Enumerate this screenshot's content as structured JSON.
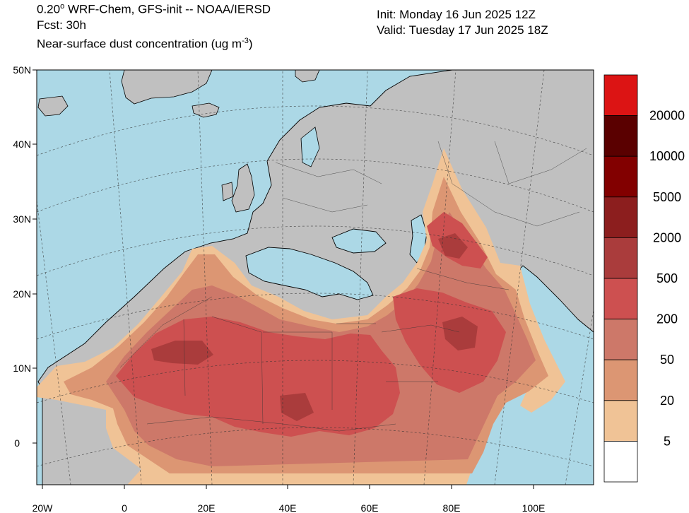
{
  "header": {
    "model_line_prefix": "0.20",
    "model_line_suffix": " WRF-Chem, GFS-init -- NOAA/IERSD",
    "forecast_line": "Fcst: 30h",
    "field_line_prefix": "Near-surface dust concentration (ug m",
    "field_line_exp": "-3",
    "field_line_suffix": ")",
    "init_line": "Init: Monday 16 Jun 2025  12Z",
    "valid_line": "Valid: Tuesday 17 Jun 2025  18Z"
  },
  "axes": {
    "lat_labels": [
      "50N",
      "40N",
      "30N",
      "20N",
      "10N",
      "0"
    ],
    "lon_labels": [
      "20W",
      "0",
      "20E",
      "40E",
      "60E",
      "80E",
      "100E"
    ]
  },
  "colorbar": {
    "labels": [
      "20000",
      "10000",
      "5000",
      "2000",
      "500",
      "200",
      "50",
      "20",
      "5"
    ],
    "colors": [
      "#dc1414",
      "#5a0000",
      "#820000",
      "#8c1e1e",
      "#aa3c3c",
      "#cd5050",
      "#cd7869",
      "#dc9673",
      "#f0c396",
      "#ffffff"
    ]
  },
  "map_colors": {
    "ocean": "#acd8e6",
    "land": "#c0c0c0",
    "dust_light": "#f0c396",
    "dust_orange": "#dc9673",
    "dust_mid": "#cd7869",
    "dust_red": "#cd5050",
    "dust_dark": "#aa3c3c"
  }
}
